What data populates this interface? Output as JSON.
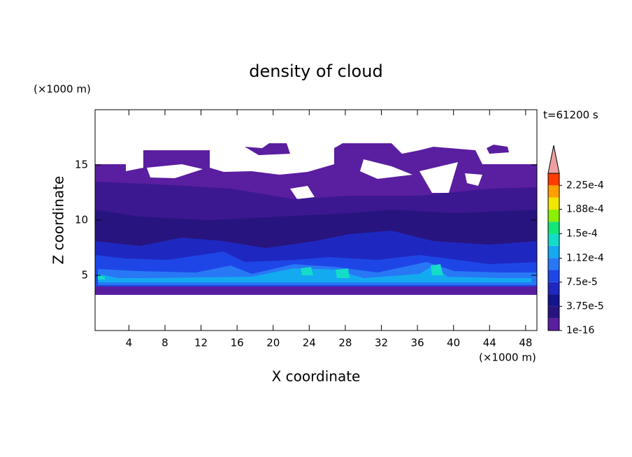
{
  "chart_data": {
    "type": "contour",
    "title": "density of cloud",
    "x_label": "X coordinate",
    "y_label": "Z coordinate",
    "x_unit": "(×1000 m)",
    "y_unit": "(×1000 m)",
    "annotation": "t=61200 s",
    "xlim": [
      0.25,
      49.25
    ],
    "xticks": [
      4,
      8,
      12,
      16,
      20,
      24,
      28,
      32,
      36,
      40,
      44,
      48
    ],
    "ylim": [
      0,
      20
    ],
    "yticks": [
      5,
      10,
      15
    ],
    "colorbar": {
      "clim": [
        1e-16,
        0.00024375
      ],
      "levels": [
        1e-16,
        {
          "value": 3.75e-05,
          "label": "3.75e-5"
        },
        {
          "value": 7.5e-05,
          "label": "7.5e-5"
        },
        {
          "value": 0.000112,
          "label": "1.12e-4"
        },
        {
          "value": 0.00015,
          "label": "1.5e-4"
        },
        {
          "value": 0.000188,
          "label": "1.88e-4"
        },
        {
          "value": 0.000225,
          "label": "2.25e-4"
        }
      ],
      "colors": [
        "#5a1ea0",
        "#28147e",
        "#14148c",
        "#1e28c0",
        "#1e46e6",
        "#2878f5",
        "#14aaf0",
        "#14dcc8",
        "#14e678",
        "#8cf000",
        "#f0e600",
        "#ffa000",
        "#ff3c00"
      ],
      "extend_color": "#f0a0a0"
    }
  }
}
